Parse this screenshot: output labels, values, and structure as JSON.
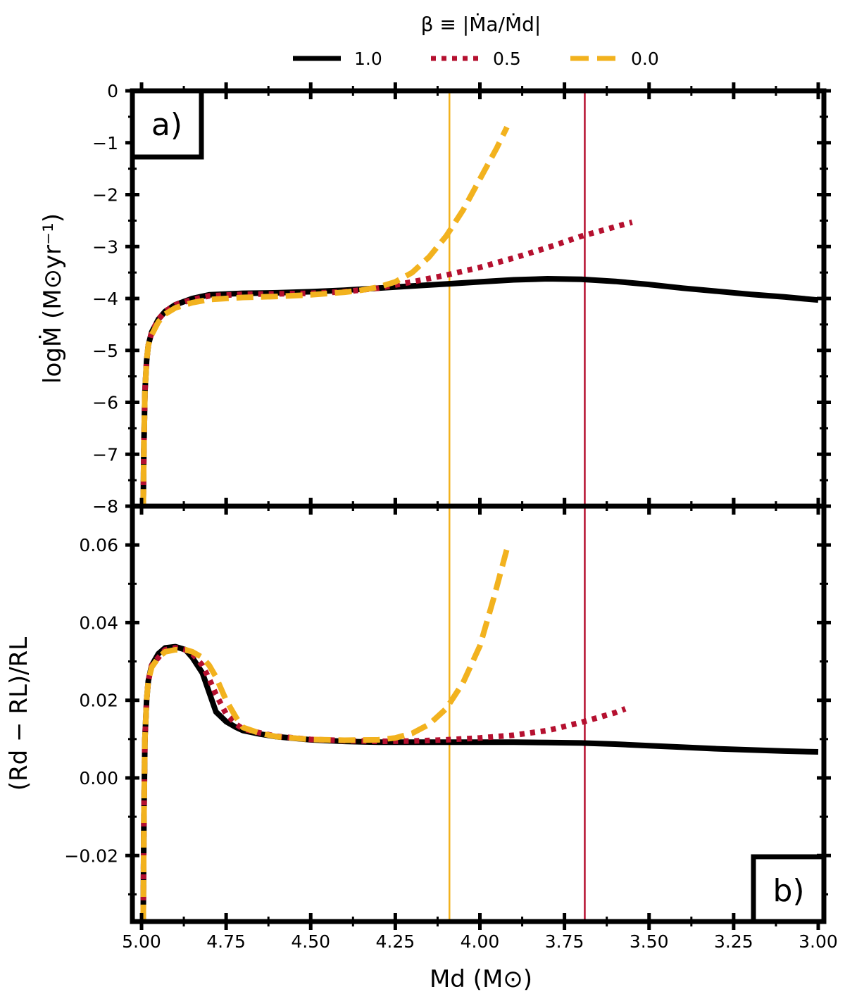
{
  "chart_data": {
    "type": "line",
    "legend": {
      "title": "β ≡ |Ṁa/Ṁd|",
      "placement": "top-center",
      "entries": [
        {
          "label": "1.0",
          "color": "#000000",
          "style": "solid"
        },
        {
          "label": "0.5",
          "color": "#b5102f",
          "style": "dotted"
        },
        {
          "label": "0.0",
          "color": "#f2b21e",
          "style": "dashed"
        }
      ]
    },
    "shared_x": {
      "label": "Md (M⊙)",
      "xlim": [
        5.0,
        3.0
      ],
      "reversed": true,
      "ticks": [
        5.0,
        4.75,
        4.5,
        4.25,
        4.0,
        3.75,
        3.5,
        3.25,
        3.0
      ],
      "tick_labels": [
        "5.00",
        "4.75",
        "4.50",
        "4.25",
        "4.00",
        "3.75",
        "3.50",
        "3.25",
        "3.00"
      ]
    },
    "vertical_lines": [
      {
        "x": 4.09,
        "color": "#f2b21e"
      },
      {
        "x": 3.69,
        "color": "#b5102f"
      }
    ],
    "panels": [
      {
        "id": "a",
        "label": "a)",
        "ylabel": "logṀ (M⊙yr⁻¹)",
        "ylim": [
          -8,
          0
        ],
        "yticks": [
          0,
          -1,
          -2,
          -3,
          -4,
          -5,
          -6,
          -7,
          -8
        ],
        "ytick_labels": [
          "0",
          "−1",
          "−2",
          "−3",
          "−4",
          "−5",
          "−6",
          "−7",
          "−8"
        ],
        "series": [
          {
            "name": "1.0",
            "x": [
              4.995,
              4.993,
              4.99,
              4.985,
              4.98,
              4.97,
              4.95,
              4.93,
              4.9,
              4.85,
              4.8,
              4.7,
              4.6,
              4.5,
              4.4,
              4.3,
              4.2,
              4.1,
              4.0,
              3.9,
              3.8,
              3.7,
              3.6,
              3.5,
              3.4,
              3.3,
              3.2,
              3.1,
              3.0
            ],
            "y": [
              -8.0,
              -6.8,
              -5.8,
              -5.2,
              -4.9,
              -4.65,
              -4.4,
              -4.25,
              -4.12,
              -4.0,
              -3.93,
              -3.9,
              -3.89,
              -3.87,
              -3.84,
              -3.8,
              -3.76,
              -3.72,
              -3.68,
              -3.64,
              -3.62,
              -3.63,
              -3.67,
              -3.73,
              -3.8,
              -3.86,
              -3.92,
              -3.97,
              -4.03
            ]
          },
          {
            "name": "0.5",
            "x": [
              4.995,
              4.993,
              4.99,
              4.985,
              4.98,
              4.97,
              4.95,
              4.93,
              4.9,
              4.85,
              4.8,
              4.7,
              4.6,
              4.5,
              4.4,
              4.3,
              4.2,
              4.1,
              4.0,
              3.9,
              3.8,
              3.7,
              3.6,
              3.55
            ],
            "y": [
              -8.0,
              -6.8,
              -5.8,
              -5.2,
              -4.9,
              -4.65,
              -4.4,
              -4.25,
              -4.12,
              -4.02,
              -3.95,
              -3.92,
              -3.91,
              -3.9,
              -3.87,
              -3.8,
              -3.68,
              -3.55,
              -3.4,
              -3.22,
              -3.02,
              -2.8,
              -2.62,
              -2.53
            ]
          },
          {
            "name": "0.0",
            "x": [
              4.995,
              4.993,
              4.99,
              4.985,
              4.98,
              4.97,
              4.95,
              4.93,
              4.9,
              4.85,
              4.8,
              4.7,
              4.6,
              4.5,
              4.4,
              4.35,
              4.3,
              4.25,
              4.2,
              4.15,
              4.1,
              4.05,
              4.0,
              3.95,
              3.92
            ],
            "y": [
              -8.0,
              -6.8,
              -5.8,
              -5.2,
              -4.9,
              -4.7,
              -4.45,
              -4.3,
              -4.18,
              -4.08,
              -4.02,
              -3.98,
              -3.96,
              -3.93,
              -3.88,
              -3.84,
              -3.78,
              -3.68,
              -3.5,
              -3.2,
              -2.8,
              -2.3,
              -1.7,
              -1.1,
              -0.7
            ]
          }
        ]
      },
      {
        "id": "b",
        "label": "b)",
        "ylabel": "(Rd − RL)/RL",
        "ylim": [
          -0.037,
          0.07
        ],
        "yticks": [
          0.06,
          0.04,
          0.02,
          0.0,
          -0.02
        ],
        "ytick_labels": [
          "0.06",
          "0.04",
          "0.02",
          "0.00",
          "−0.02"
        ],
        "series": [
          {
            "name": "1.0",
            "x": [
              4.995,
              4.993,
              4.99,
              4.985,
              4.98,
              4.97,
              4.95,
              4.93,
              4.9,
              4.87,
              4.85,
              4.82,
              4.8,
              4.78,
              4.75,
              4.72,
              4.7,
              4.65,
              4.6,
              4.5,
              4.4,
              4.3,
              4.2,
              4.1,
              4.0,
              3.9,
              3.8,
              3.7,
              3.6,
              3.5,
              3.4,
              3.3,
              3.2,
              3.1,
              3.0
            ],
            "y": [
              -0.037,
              -0.01,
              0.01,
              0.02,
              0.025,
              0.029,
              0.032,
              0.0335,
              0.0338,
              0.033,
              0.031,
              0.027,
              0.022,
              0.017,
              0.0145,
              0.013,
              0.0122,
              0.0113,
              0.0106,
              0.0098,
              0.0094,
              0.0092,
              0.0092,
              0.0092,
              0.0092,
              0.0092,
              0.0091,
              0.009,
              0.0087,
              0.0083,
              0.0079,
              0.0075,
              0.0072,
              0.0069,
              0.0067
            ]
          },
          {
            "name": "0.5",
            "x": [
              4.995,
              4.993,
              4.99,
              4.985,
              4.98,
              4.97,
              4.95,
              4.93,
              4.9,
              4.87,
              4.85,
              4.82,
              4.8,
              4.78,
              4.75,
              4.72,
              4.7,
              4.65,
              4.6,
              4.5,
              4.4,
              4.3,
              4.2,
              4.1,
              4.0,
              3.9,
              3.8,
              3.7,
              3.6,
              3.57
            ],
            "y": [
              -0.037,
              -0.01,
              0.01,
              0.02,
              0.025,
              0.029,
              0.031,
              0.033,
              0.0335,
              0.033,
              0.032,
              0.029,
              0.0255,
              0.0215,
              0.0165,
              0.0138,
              0.0126,
              0.0116,
              0.0107,
              0.0099,
              0.0096,
              0.0094,
              0.0095,
              0.0098,
              0.0103,
              0.011,
              0.0122,
              0.0143,
              0.0168,
              0.0178
            ]
          },
          {
            "name": "0.0",
            "x": [
              4.995,
              4.993,
              4.99,
              4.985,
              4.98,
              4.97,
              4.95,
              4.93,
              4.9,
              4.87,
              4.85,
              4.82,
              4.8,
              4.78,
              4.75,
              4.72,
              4.7,
              4.65,
              4.6,
              4.5,
              4.4,
              4.3,
              4.25,
              4.2,
              4.15,
              4.1,
              4.05,
              4.0,
              3.96,
              3.92
            ],
            "y": [
              -0.037,
              -0.01,
              0.01,
              0.02,
              0.025,
              0.0285,
              0.031,
              0.0325,
              0.033,
              0.033,
              0.0325,
              0.031,
              0.029,
              0.026,
              0.02,
              0.0155,
              0.013,
              0.0115,
              0.0106,
              0.0099,
              0.0097,
              0.0098,
              0.0103,
              0.0115,
              0.0138,
              0.0178,
              0.0245,
              0.034,
              0.046,
              0.059
            ]
          }
        ]
      }
    ]
  }
}
